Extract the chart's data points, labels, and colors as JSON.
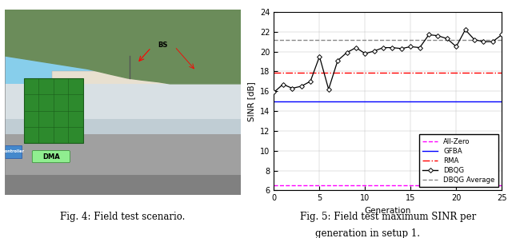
{
  "dbqg_x": [
    0,
    1,
    2,
    3,
    4,
    5,
    6,
    7,
    8,
    9,
    10,
    11,
    12,
    13,
    14,
    15,
    16,
    17,
    18,
    19,
    20,
    21,
    22,
    23,
    24,
    25
  ],
  "dbqg_y": [
    15.9,
    16.7,
    16.3,
    16.5,
    17.0,
    19.5,
    16.2,
    19.1,
    19.9,
    20.4,
    19.8,
    20.05,
    20.4,
    20.4,
    20.3,
    20.5,
    20.4,
    21.7,
    21.6,
    21.3,
    20.5,
    22.2,
    21.2,
    21.0,
    21.0,
    21.7
  ],
  "all_zero_y": 6.5,
  "gfba_y": 15.0,
  "rma_y": 17.9,
  "dbqg_avg_y": 21.2,
  "ylim": [
    6,
    24
  ],
  "xlim": [
    0,
    25
  ],
  "yticks": [
    6,
    8,
    10,
    12,
    14,
    16,
    18,
    20,
    22,
    24
  ],
  "xticks": [
    0,
    5,
    10,
    15,
    20,
    25
  ],
  "ylabel": "SINR [dB]",
  "xlabel": "Generation",
  "fig4_caption": "Fig. 4: Field test scenario.",
  "fig5_caption_line1": "Fig. 5: Field test maximum SINR per",
  "fig5_caption_line2": "generation in setup 1.",
  "legend_labels": [
    "All-Zero",
    "GFBA",
    "RMA",
    "DBQG",
    "DBQG Average"
  ],
  "colors": {
    "all_zero": "#ff00ff",
    "gfba": "#0000ff",
    "rma": "#ff0000",
    "dbqg": "#000000",
    "dbqg_avg": "#888888"
  },
  "photo": {
    "sky_color": "#87CEEB",
    "hill_color": "#6b8c5a",
    "building_color": "#e8e0d0",
    "wall_color": "#c8d4dc",
    "dma_color": "#2d8a2d",
    "concrete_color": "#a0a0a0"
  }
}
